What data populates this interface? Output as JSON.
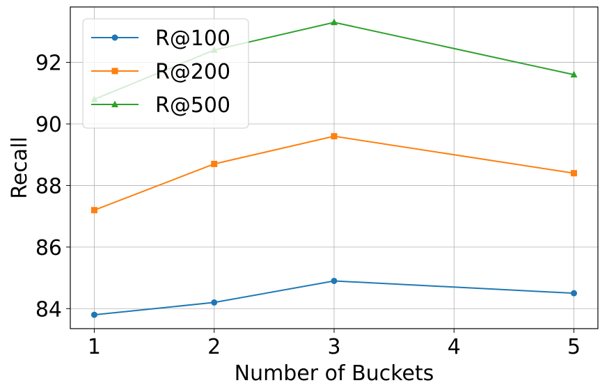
{
  "chart_data": {
    "type": "line",
    "title": "",
    "xlabel": "Number of Buckets",
    "ylabel": "Recall",
    "x": [
      1,
      2,
      3,
      4,
      5
    ],
    "x_ticks": [
      "1",
      "2",
      "3",
      "4",
      "5"
    ],
    "y_ticks": [
      "84",
      "86",
      "88",
      "90",
      "92"
    ],
    "xlim": [
      0.8,
      5.2
    ],
    "ylim": [
      83.35,
      93.8
    ],
    "grid": true,
    "legend_position": "top-left",
    "series": [
      {
        "name": "R@100",
        "color": "#1f77b4",
        "marker": "circle",
        "x": [
          1,
          2,
          3,
          5
        ],
        "values": [
          83.8,
          84.2,
          84.9,
          84.5
        ]
      },
      {
        "name": "R@200",
        "color": "#ff7f0e",
        "marker": "square",
        "x": [
          1,
          2,
          3,
          5
        ],
        "values": [
          87.2,
          88.7,
          89.6,
          88.4
        ]
      },
      {
        "name": "R@500",
        "color": "#2ca02c",
        "marker": "triangle",
        "x": [
          1,
          2,
          3,
          5
        ],
        "values": [
          90.8,
          92.4,
          93.3,
          91.6
        ]
      }
    ]
  }
}
